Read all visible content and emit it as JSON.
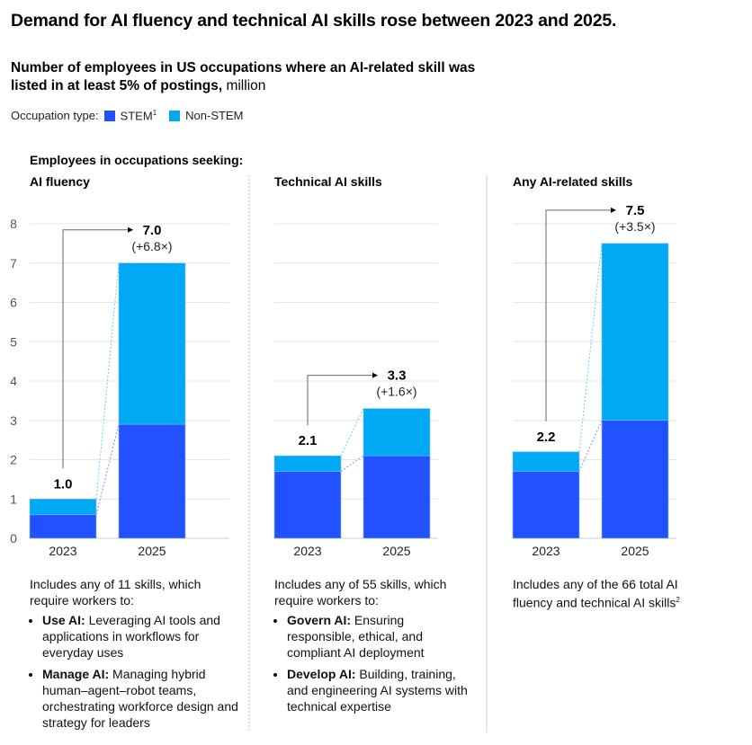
{
  "title": "Demand for AI fluency and technical AI skills rose between 2023 and 2025.",
  "subtitle": {
    "bold": "Number of employees in US occupations where an AI-related skill was listed in at least 5% of postings,",
    "unit": " million"
  },
  "legend": {
    "label": "Occupation type:",
    "items": [
      {
        "name": "STEM",
        "sup": "1",
        "color": "#2251ff"
      },
      {
        "name": "Non-STEM",
        "color": "#00a9f4"
      }
    ]
  },
  "section_heading": "Employees in occupations seeking:",
  "chart_data": {
    "type": "bar",
    "stacked": true,
    "ylim": [
      0,
      8
    ],
    "yticks": [
      "0",
      "1",
      "2",
      "3",
      "4",
      "5",
      "6",
      "7",
      "8"
    ],
    "grid": true,
    "categories": [
      "2023",
      "2025"
    ],
    "panels": [
      {
        "title": "AI fluency",
        "series": [
          {
            "name": "STEM",
            "values": [
              0.6,
              2.9
            ]
          },
          {
            "name": "Non-STEM",
            "values": [
              0.4,
              4.1
            ]
          }
        ],
        "totals": [
          "1.0",
          "7.0"
        ],
        "change": "(+6.8×)"
      },
      {
        "title": "Technical AI skills",
        "series": [
          {
            "name": "STEM",
            "values": [
              1.7,
              2.1
            ]
          },
          {
            "name": "Non-STEM",
            "values": [
              0.4,
              1.2
            ]
          }
        ],
        "totals": [
          "2.1",
          "3.3"
        ],
        "change": "(+1.6×)"
      },
      {
        "title": "Any AI-related skills",
        "series": [
          {
            "name": "STEM",
            "values": [
              1.7,
              3.0
            ]
          },
          {
            "name": "Non-STEM",
            "values": [
              0.5,
              4.5
            ]
          }
        ],
        "totals": [
          "2.2",
          "7.5"
        ],
        "change": "(+3.5×)"
      }
    ]
  },
  "descriptions": [
    {
      "intro": "Includes any of 11 skills, which require workers to:",
      "bullets": [
        {
          "term": "Use AI:",
          "text": " Leveraging AI tools and applications in workflows for everyday uses"
        },
        {
          "term": "Manage AI:",
          "text": " Managing hybrid human–agent–robot teams, orchestrating workforce design and strategy for leaders"
        }
      ]
    },
    {
      "intro": "Includes any of 55 skills, which require workers to:",
      "bullets": [
        {
          "term": "Govern AI:",
          "text": " Ensuring responsible, ethical, and compliant AI deployment"
        },
        {
          "term": "Develop AI:",
          "text": " Building, training, and engineering AI systems with technical expertise"
        }
      ]
    },
    {
      "intro": "Includes any of the 66 total AI fluency and technical AI skills",
      "sup": "2",
      "bullets": []
    }
  ]
}
